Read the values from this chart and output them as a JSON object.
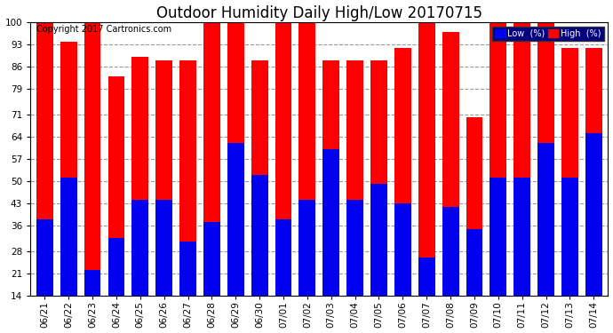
{
  "title": "Outdoor Humidity Daily High/Low 20170715",
  "copyright": "Copyright 2017 Cartronics.com",
  "dates": [
    "06/21",
    "06/22",
    "06/23",
    "06/24",
    "06/25",
    "06/26",
    "06/27",
    "06/28",
    "06/29",
    "06/30",
    "07/01",
    "07/02",
    "07/03",
    "07/04",
    "07/05",
    "07/06",
    "07/07",
    "07/08",
    "07/09",
    "07/10",
    "07/11",
    "07/12",
    "07/13",
    "07/14"
  ],
  "high": [
    100,
    94,
    100,
    83,
    89,
    88,
    88,
    100,
    100,
    88,
    100,
    100,
    88,
    88,
    88,
    92,
    100,
    97,
    70,
    100,
    100,
    100,
    92,
    92
  ],
  "low": [
    38,
    51,
    22,
    32,
    44,
    44,
    31,
    37,
    62,
    52,
    38,
    44,
    60,
    44,
    49,
    43,
    26,
    42,
    35,
    51,
    51,
    62,
    51,
    65
  ],
  "ylim": [
    14,
    100
  ],
  "yticks": [
    14,
    21,
    28,
    36,
    43,
    50,
    57,
    64,
    71,
    79,
    86,
    93,
    100
  ],
  "high_color": "#ff0000",
  "low_color": "#0000ee",
  "bg_color": "#ffffff",
  "grid_color": "#999999",
  "bar_width": 0.7,
  "title_fontsize": 12,
  "tick_fontsize": 7.5,
  "copyright_fontsize": 7,
  "legend_low_label": "Low  (%)",
  "legend_high_label": "High  (%)"
}
